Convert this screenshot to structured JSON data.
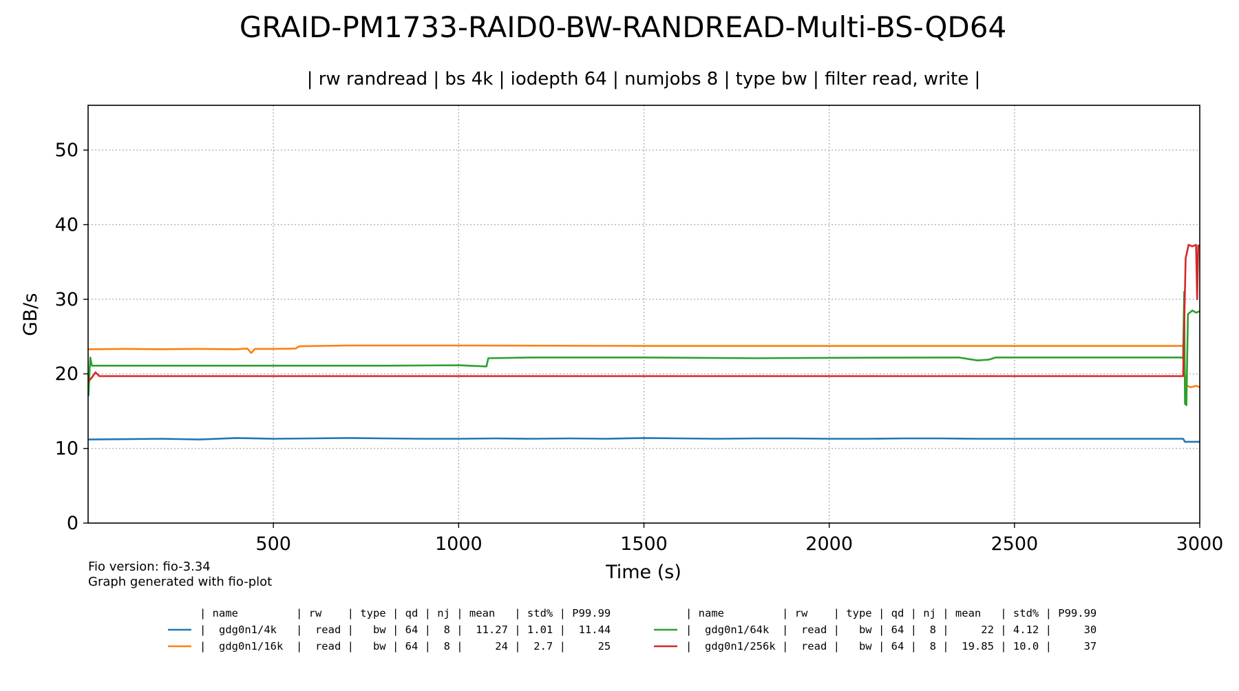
{
  "chart_data": {
    "type": "line",
    "title": "GRAID-PM1733-RAID0-BW-RANDREAD-Multi-BS-QD64",
    "subtitle": "| rw randread | bs 4k | iodepth 64 | numjobs 8 | type bw | filter read, write |",
    "xlabel": "Time (s)",
    "ylabel": "GB/s",
    "xlim": [
      0,
      3000
    ],
    "ylim": [
      0,
      56
    ],
    "xticks": [
      500,
      1000,
      1500,
      2000,
      2500,
      3000
    ],
    "yticks": [
      0,
      10,
      20,
      30,
      40,
      50
    ],
    "grid": true,
    "series": [
      {
        "name": "gdg0n1/4k",
        "color": "#1f77b4",
        "points": [
          [
            1,
            11.2
          ],
          [
            100,
            11.25
          ],
          [
            200,
            11.3
          ],
          [
            300,
            11.2
          ],
          [
            400,
            11.4
          ],
          [
            500,
            11.3
          ],
          [
            600,
            11.35
          ],
          [
            700,
            11.4
          ],
          [
            800,
            11.35
          ],
          [
            900,
            11.3
          ],
          [
            1000,
            11.3
          ],
          [
            1100,
            11.35
          ],
          [
            1200,
            11.3
          ],
          [
            1300,
            11.35
          ],
          [
            1400,
            11.3
          ],
          [
            1500,
            11.4
          ],
          [
            1600,
            11.35
          ],
          [
            1700,
            11.3
          ],
          [
            1800,
            11.35
          ],
          [
            1900,
            11.35
          ],
          [
            2000,
            11.3
          ],
          [
            2100,
            11.3
          ],
          [
            2200,
            11.35
          ],
          [
            2300,
            11.35
          ],
          [
            2400,
            11.3
          ],
          [
            2500,
            11.3
          ],
          [
            2600,
            11.3
          ],
          [
            2700,
            11.3
          ],
          [
            2800,
            11.3
          ],
          [
            2900,
            11.3
          ],
          [
            2955,
            11.3
          ],
          [
            2960,
            10.9
          ],
          [
            3000,
            10.9
          ]
        ]
      },
      {
        "name": "gdg0n1/16k",
        "color": "#ff7f0e",
        "points": [
          [
            1,
            23.3
          ],
          [
            100,
            23.35
          ],
          [
            200,
            23.3
          ],
          [
            300,
            23.35
          ],
          [
            400,
            23.3
          ],
          [
            430,
            23.4
          ],
          [
            440,
            22.8
          ],
          [
            450,
            23.35
          ],
          [
            500,
            23.35
          ],
          [
            560,
            23.4
          ],
          [
            570,
            23.7
          ],
          [
            700,
            23.8
          ],
          [
            1000,
            23.8
          ],
          [
            1500,
            23.75
          ],
          [
            2000,
            23.75
          ],
          [
            2500,
            23.75
          ],
          [
            2955,
            23.75
          ],
          [
            2962,
            18.5
          ],
          [
            2975,
            18.2
          ],
          [
            2990,
            18.4
          ],
          [
            3000,
            18.2
          ]
        ]
      },
      {
        "name": "gdg0n1/64k",
        "color": "#2ca02c",
        "points": [
          [
            1,
            17.0
          ],
          [
            4,
            20.5
          ],
          [
            6,
            22.2
          ],
          [
            10,
            21.1
          ],
          [
            200,
            21.1
          ],
          [
            500,
            21.1
          ],
          [
            800,
            21.1
          ],
          [
            1000,
            21.15
          ],
          [
            1075,
            21.0
          ],
          [
            1080,
            22.1
          ],
          [
            1200,
            22.2
          ],
          [
            1500,
            22.2
          ],
          [
            1800,
            22.1
          ],
          [
            2000,
            22.15
          ],
          [
            2350,
            22.2
          ],
          [
            2400,
            21.8
          ],
          [
            2430,
            21.9
          ],
          [
            2450,
            22.2
          ],
          [
            2950,
            22.2
          ],
          [
            2955,
            22.1
          ],
          [
            2958,
            31.0
          ],
          [
            2960,
            16.0
          ],
          [
            2964,
            15.8
          ],
          [
            2968,
            28.0
          ],
          [
            2980,
            28.5
          ],
          [
            2990,
            28.2
          ],
          [
            3000,
            28.4
          ]
        ]
      },
      {
        "name": "gdg0n1/256k",
        "color": "#d62728",
        "points": [
          [
            1,
            19.0
          ],
          [
            10,
            19.5
          ],
          [
            20,
            20.2
          ],
          [
            30,
            19.7
          ],
          [
            200,
            19.7
          ],
          [
            500,
            19.7
          ],
          [
            1000,
            19.7
          ],
          [
            1500,
            19.7
          ],
          [
            2000,
            19.7
          ],
          [
            2500,
            19.7
          ],
          [
            2955,
            19.7
          ],
          [
            2962,
            35.5
          ],
          [
            2970,
            37.3
          ],
          [
            2980,
            37.1
          ],
          [
            2990,
            37.3
          ],
          [
            2993,
            30.0
          ],
          [
            2996,
            37.2
          ],
          [
            3000,
            37.2
          ]
        ]
      }
    ],
    "legend_table": {
      "header": "| name         | rw    | type | qd | nj | mean   | std% | P99.99",
      "rows": [
        "|  gdg0n1/4k   |  read |   bw | 64 |  8 |  11.27 | 1.01 |  11.44",
        "|  gdg0n1/16k  |  read |   bw | 64 |  8 |     24 |  2.7 |     25",
        "|  gdg0n1/64k  |  read |   bw | 64 |  8 |     22 | 4.12 |     30",
        "|  gdg0n1/256k |  read |   bw | 64 |  8 |  19.85 | 10.0 |     37"
      ]
    },
    "legend_placement": "bottom"
  },
  "footer": {
    "fio_version": "Fio version: fio-3.34",
    "generated_with": "Graph generated with fio-plot"
  }
}
